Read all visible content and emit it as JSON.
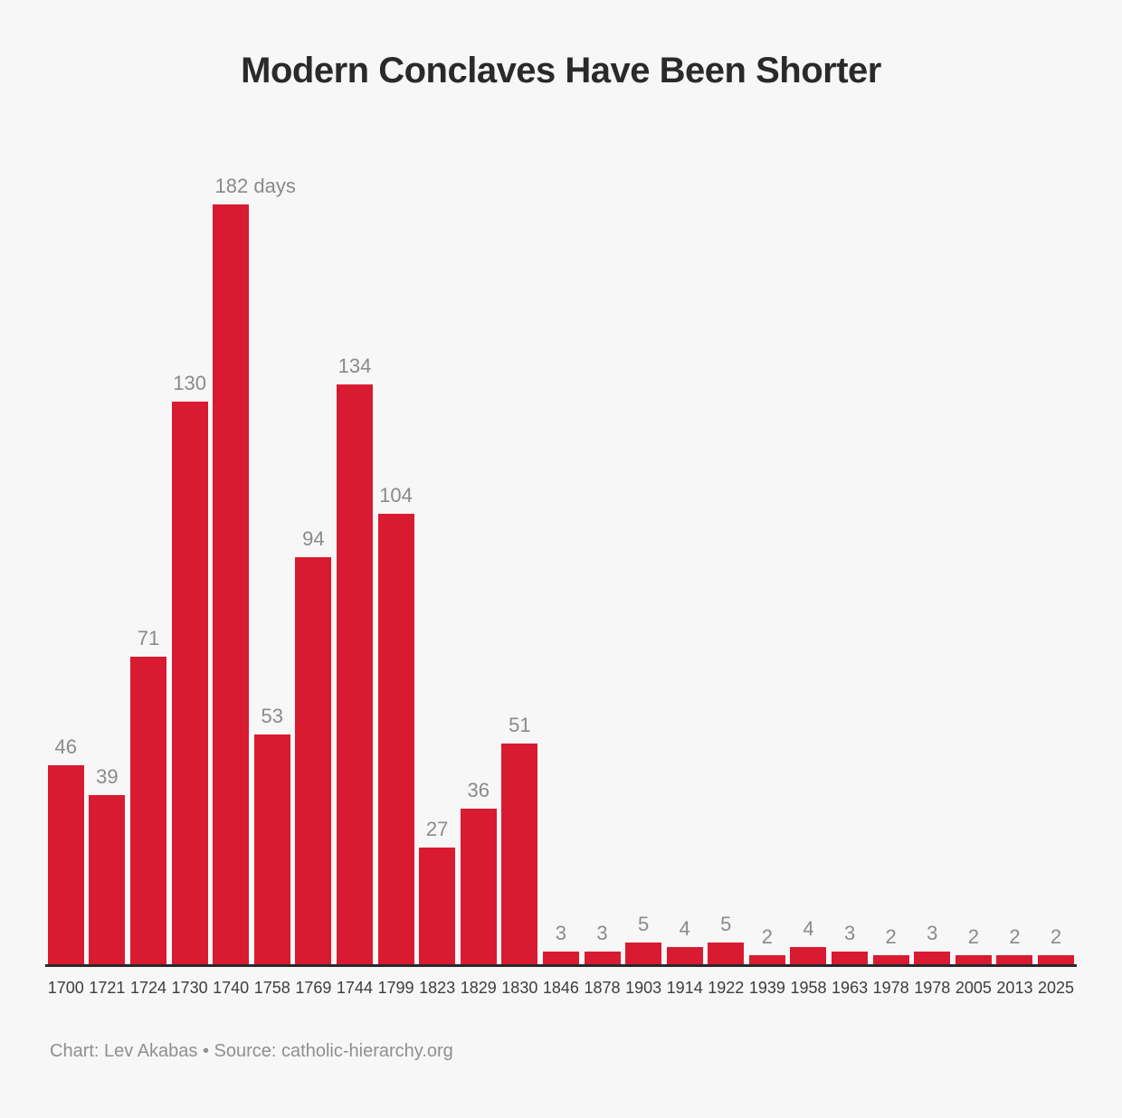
{
  "page": {
    "title": "Modern Conclaves Have Been Shorter",
    "footer": "Chart: Lev Akabas • Source: catholic-hierarchy.org"
  },
  "chart_data": {
    "type": "bar",
    "title": "Modern Conclaves Have Been Shorter",
    "categories": [
      "1700",
      "1721",
      "1724",
      "1730",
      "1740",
      "1758",
      "1769",
      "1744",
      "1799",
      "1823",
      "1829",
      "1830",
      "1846",
      "1878",
      "1903",
      "1914",
      "1922",
      "1939",
      "1958",
      "1963",
      "1978",
      "1978",
      "2005",
      "2013",
      "2025"
    ],
    "values": [
      46,
      39,
      71,
      130,
      182,
      53,
      94,
      134,
      104,
      27,
      36,
      51,
      3,
      3,
      5,
      4,
      5,
      2,
      4,
      3,
      2,
      3,
      2,
      2,
      2
    ],
    "bar_labels": [
      "46",
      "39",
      "71",
      "130",
      "182 days",
      "53",
      "94",
      "134",
      "104",
      "27",
      "36",
      "51",
      "3",
      "3",
      "5",
      "4",
      "5",
      "2",
      "4",
      "3",
      "2",
      "3",
      "2",
      "2",
      "2"
    ],
    "unit": "days",
    "xlabel": "",
    "ylabel": "",
    "ylim": [
      0,
      182
    ],
    "grid": false,
    "legend": false,
    "bar_color": "#d91b32",
    "value_label_color": "#8a8a8a",
    "tick_label_color": "#3d3d3d",
    "axis_line_color": "#2b272b",
    "background_color": "#f7f7f7",
    "source_note": "Chart: Lev Akabas • Source: catholic-hierarchy.org"
  }
}
